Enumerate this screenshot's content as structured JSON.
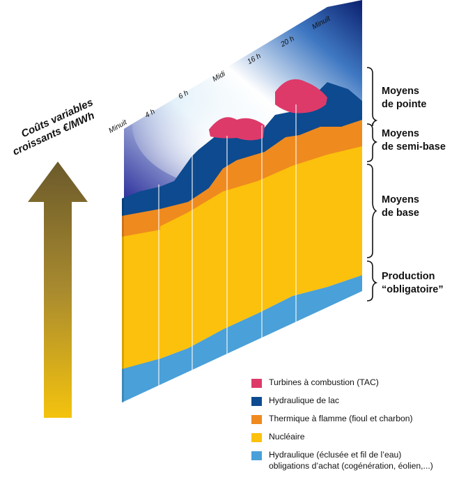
{
  "arrow": {
    "line1": "Coûts variables",
    "line2": "croissants €/MWh"
  },
  "time_axis": [
    "Minuit",
    "4 h",
    "6 h",
    "Midi",
    "16 h",
    "20 h",
    "Minuit"
  ],
  "groups": [
    {
      "line1": "Moyens",
      "line2": "de pointe"
    },
    {
      "line1": "Moyens",
      "line2": "de semi-base"
    },
    {
      "line1": "Moyens",
      "line2": "de base"
    },
    {
      "line1": "Production",
      "line2": "“obligatoire”"
    }
  ],
  "legend": [
    {
      "label": "Turbines à combustion (TAC)",
      "color": "#dd3a6a"
    },
    {
      "label": "Hydraulique de lac",
      "color": "#0d4a8f"
    },
    {
      "label": "Thermique à flamme (fioul et charbon)",
      "color": "#ef8a1f"
    },
    {
      "label": "Nucléaire",
      "color": "#fcc10c"
    },
    {
      "label": "Hydraulique (éclusée et fil de l’eau)",
      "label2": "obligations d’achat (cogénération, éolien,...)",
      "color": "#4aa0d8"
    }
  ]
}
